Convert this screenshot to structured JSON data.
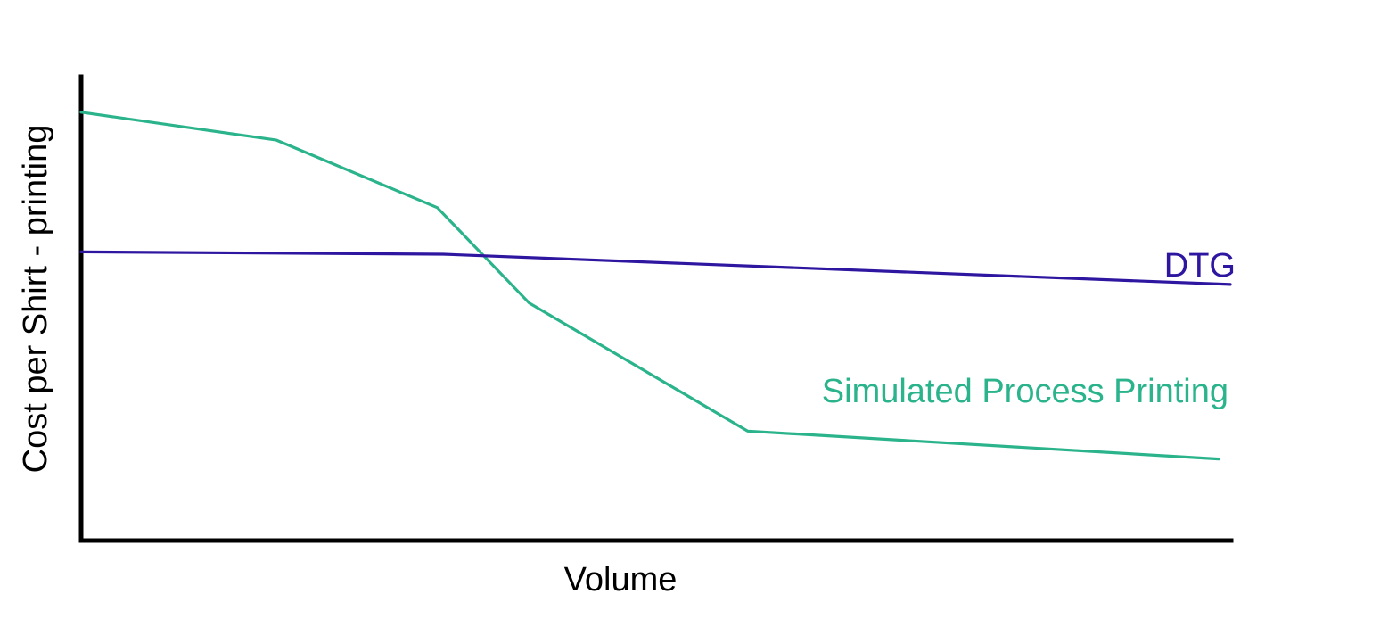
{
  "chart_data": {
    "type": "line",
    "title": "",
    "xlabel": "Volume",
    "ylabel": "Cost per Shirt - printing",
    "xlim": [
      0,
      100
    ],
    "ylim": [
      0,
      100
    ],
    "x_ticks": "none",
    "y_ticks": "none",
    "grid": false,
    "legend": "inline labels at right end of each line",
    "series": [
      {
        "name": "DTG",
        "color": "#2e16a0",
        "x": [
          0,
          31.5,
          100
        ],
        "y": [
          62,
          61.5,
          55
        ]
      },
      {
        "name": "Simulated Process Printing",
        "color": "#2bb48c",
        "x": [
          0,
          17,
          31,
          39,
          58,
          99
        ],
        "y": [
          92,
          86,
          71.5,
          51,
          23.5,
          17.5
        ]
      }
    ]
  }
}
